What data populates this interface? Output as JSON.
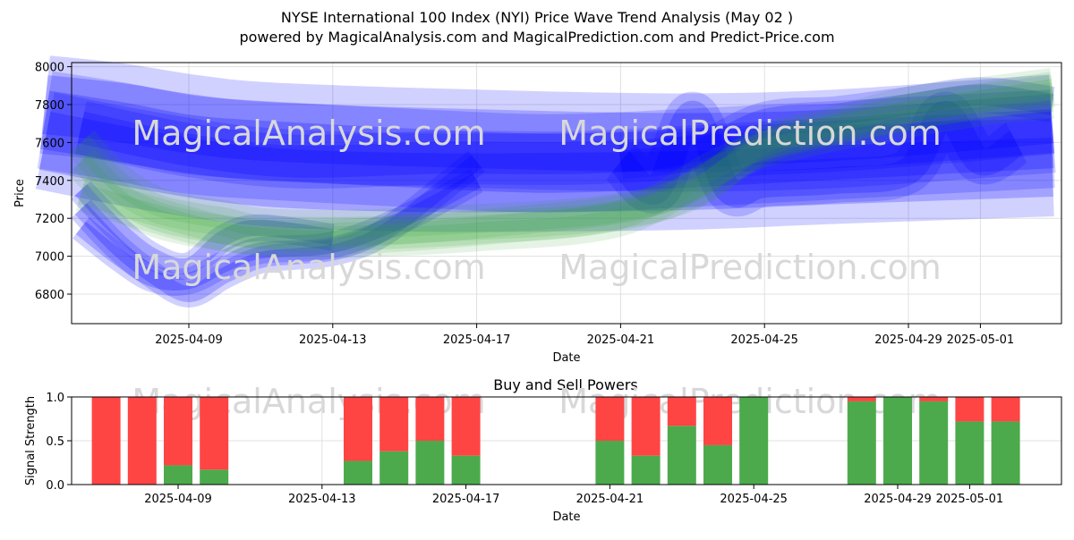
{
  "title_line1": "NYSE International 100 Index (NYI) Price Wave Trend Analysis (May 02 )",
  "title_line2": "powered by MagicalAnalysis.com and MagicalPrediction.com and Predict-Price.com",
  "watermark_left": "MagicalAnalysis.com",
  "watermark_right": "MagicalPrediction.com",
  "colors": {
    "blue_band": "#0000ff",
    "green_band": "#2ca02c",
    "buy": "#4caa4c",
    "sell": "#ff4444",
    "grid": "#e0e0e0",
    "watermark": "#d8d8d8"
  },
  "chart_data": [
    {
      "type": "line",
      "title": "",
      "xlabel": "Date",
      "ylabel": "Price",
      "x_ticks": [
        "2025-04-09",
        "2025-04-13",
        "2025-04-17",
        "2025-04-21",
        "2025-04-25",
        "2025-04-29",
        "2025-05-01"
      ],
      "y_ticks": [
        6800,
        7000,
        7200,
        7400,
        7600,
        7800,
        8000
      ],
      "xlim": [
        "2025-04-05",
        "2025-05-03"
      ],
      "ylim": [
        6640,
        8030
      ],
      "grid": true,
      "series": [
        {
          "color": "blue",
          "dates": [
            "2025-04-05",
            "2025-04-07",
            "2025-04-09",
            "2025-04-11",
            "2025-04-15",
            "2025-04-19",
            "2025-04-23",
            "2025-04-27",
            "2025-05-03"
          ],
          "values": [
            7800,
            7760,
            7700,
            7660,
            7630,
            7610,
            7600,
            7620,
            7700
          ],
          "width": 110
        },
        {
          "color": "blue",
          "dates": [
            "2025-04-05",
            "2025-04-07",
            "2025-04-09",
            "2025-04-11",
            "2025-04-15",
            "2025-04-19",
            "2025-04-23",
            "2025-04-27",
            "2025-05-03"
          ],
          "values": [
            7720,
            7660,
            7590,
            7560,
            7520,
            7490,
            7520,
            7560,
            7620
          ],
          "width": 110
        },
        {
          "color": "blue",
          "dates": [
            "2025-04-05",
            "2025-04-08",
            "2025-04-11",
            "2025-04-15",
            "2025-04-19",
            "2025-04-23",
            "2025-04-27",
            "2025-05-03"
          ],
          "values": [
            7610,
            7500,
            7420,
            7390,
            7390,
            7400,
            7430,
            7470
          ],
          "width": 110
        },
        {
          "color": "blue",
          "dates": [
            "2025-04-06",
            "2025-04-09",
            "2025-04-12",
            "2025-04-16",
            "2025-04-20",
            "2025-04-24",
            "2025-04-28",
            "2025-05-03"
          ],
          "values": [
            7680,
            7560,
            7500,
            7520,
            7520,
            7560,
            7600,
            7680
          ],
          "width": 60
        },
        {
          "color": "blue",
          "dates": [
            "2025-04-06",
            "2025-04-07",
            "2025-04-08",
            "2025-04-09",
            "2025-04-10",
            "2025-04-11",
            "2025-04-12",
            "2025-04-13",
            "2025-04-14",
            "2025-04-15",
            "2025-04-16",
            "2025-04-17"
          ],
          "values": [
            7250,
            7050,
            6900,
            6800,
            6900,
            6980,
            7000,
            7020,
            7080,
            7200,
            7350,
            7500
          ],
          "width": 30
        },
        {
          "color": "blue",
          "dates": [
            "2025-04-06",
            "2025-04-07",
            "2025-04-08",
            "2025-04-09",
            "2025-04-10",
            "2025-04-11",
            "2025-04-13",
            "2025-04-15",
            "2025-04-17"
          ],
          "values": [
            7150,
            7000,
            6880,
            6870,
            6960,
            7030,
            7060,
            7200,
            7400
          ],
          "width": 30
        },
        {
          "color": "blue",
          "dates": [
            "2025-04-06",
            "2025-04-07",
            "2025-04-08",
            "2025-04-09",
            "2025-04-10",
            "2025-04-11",
            "2025-04-13"
          ],
          "values": [
            7350,
            7150,
            7000,
            6950,
            7100,
            7150,
            7100
          ],
          "width": 30
        },
        {
          "color": "blue",
          "dates": [
            "2025-04-21",
            "2025-04-22",
            "2025-04-23",
            "2025-04-24",
            "2025-04-25",
            "2025-04-27",
            "2025-04-29",
            "2025-04-30",
            "2025-05-01",
            "2025-05-02"
          ],
          "values": [
            7500,
            7350,
            7750,
            7350,
            7380,
            7400,
            7450,
            7750,
            7500,
            7600
          ],
          "width": 50
        },
        {
          "color": "blue",
          "dates": [
            "2025-04-21",
            "2025-04-23",
            "2025-04-25",
            "2025-04-27",
            "2025-04-29",
            "2025-05-01",
            "2025-05-03"
          ],
          "values": [
            7500,
            7550,
            7720,
            7750,
            7800,
            7850,
            7800
          ],
          "width": 40
        },
        {
          "color": "green",
          "dates": [
            "2025-04-06",
            "2025-04-07",
            "2025-04-08",
            "2025-04-09",
            "2025-04-10",
            "2025-04-11",
            "2025-04-13",
            "2025-04-15",
            "2025-04-17",
            "2025-04-19",
            "2025-04-21",
            "2025-04-23",
            "2025-04-25",
            "2025-04-27",
            "2025-04-29",
            "2025-05-01",
            "2025-05-03"
          ],
          "values": [
            7600,
            7400,
            7280,
            7230,
            7200,
            7160,
            7150,
            7160,
            7180,
            7200,
            7240,
            7340,
            7600,
            7700,
            7800,
            7850,
            7900
          ],
          "width": 40
        },
        {
          "color": "green",
          "dates": [
            "2025-04-06",
            "2025-04-07",
            "2025-04-08",
            "2025-04-09",
            "2025-04-10",
            "2025-04-11",
            "2025-04-13",
            "2025-04-15",
            "2025-04-17",
            "2025-04-21",
            "2025-04-23",
            "2025-04-25",
            "2025-04-27",
            "2025-04-29",
            "2025-05-01",
            "2025-05-03"
          ],
          "values": [
            7500,
            7300,
            7200,
            7150,
            7120,
            7100,
            7100,
            7120,
            7150,
            7230,
            7350,
            7580,
            7680,
            7760,
            7820,
            7880
          ],
          "width": 40
        },
        {
          "color": "green",
          "dates": [
            "2025-04-06",
            "2025-04-08",
            "2025-04-10",
            "2025-04-12",
            "2025-04-14",
            "2025-04-17",
            "2025-04-21",
            "2025-04-24",
            "2025-04-27",
            "2025-05-01",
            "2025-05-03"
          ],
          "values": [
            7330,
            7220,
            7120,
            7080,
            7090,
            7120,
            7200,
            7500,
            7650,
            7780,
            7820
          ],
          "width": 40
        }
      ]
    },
    {
      "type": "bar",
      "title": "Buy and Sell Powers",
      "xlabel": "Date",
      "ylabel": "Signal Strength",
      "x_ticks": [
        "2025-04-09",
        "2025-04-13",
        "2025-04-17",
        "2025-04-21",
        "2025-04-25",
        "2025-04-29",
        "2025-05-01"
      ],
      "y_ticks": [
        "0.0",
        "0.5",
        "1.0"
      ],
      "ylim": [
        0,
        1
      ],
      "grid": true,
      "categories": [
        "2025-04-07",
        "2025-04-08",
        "2025-04-09",
        "2025-04-10",
        "2025-04-14",
        "2025-04-15",
        "2025-04-16",
        "2025-04-17",
        "2025-04-21",
        "2025-04-22",
        "2025-04-23",
        "2025-04-24",
        "2025-04-25",
        "2025-04-28",
        "2025-04-29",
        "2025-04-30",
        "2025-05-01",
        "2025-05-02"
      ],
      "series": [
        {
          "name": "buy",
          "values": [
            0,
            0,
            0.22,
            0.17,
            0.27,
            0.38,
            0.5,
            0.33,
            0.5,
            0.33,
            0.67,
            0.45,
            1.0,
            0.95,
            1.0,
            0.95,
            0.72,
            0.72
          ]
        },
        {
          "name": "sell",
          "values": [
            1.0,
            1.0,
            0.78,
            0.83,
            0.73,
            0.62,
            0.5,
            0.67,
            0.5,
            0.67,
            0.33,
            0.55,
            0.0,
            0.05,
            0.0,
            0.05,
            0.28,
            0.28
          ]
        }
      ]
    }
  ]
}
